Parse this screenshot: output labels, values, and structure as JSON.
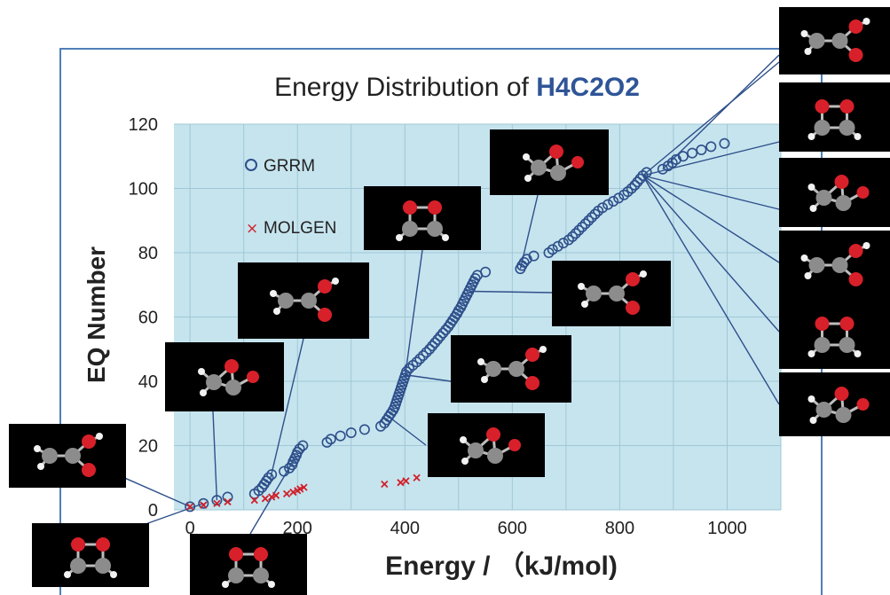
{
  "chart_data": {
    "type": "scatter",
    "title_prefix": "Energy Distribution of ",
    "title_formula": "H4C2O2",
    "xlabel": "Energy / （kJ/mol)",
    "ylabel": "EQ Number",
    "xlim": [
      -30,
      1100
    ],
    "ylim": [
      0,
      120
    ],
    "x_ticks": [
      0,
      200,
      400,
      600,
      800,
      1000
    ],
    "y_ticks": [
      0,
      20,
      40,
      60,
      80,
      100,
      120
    ],
    "grid": true,
    "legend_placement": "top-left",
    "colors": {
      "plot_background": "#c6e4ee",
      "grid": "#9fc7d6",
      "frame": "#4f7fb8",
      "grrm": "#2e4f8a",
      "molgen": "#d0202a",
      "title_formula": "#2f5597",
      "leader_line": "#2e4f8a",
      "thumbnail": "#000000"
    },
    "series": [
      {
        "name": "GRRM",
        "marker": "circle",
        "points": [
          [
            0,
            1
          ],
          [
            25,
            2
          ],
          [
            50,
            3
          ],
          [
            70,
            4
          ],
          [
            120,
            5
          ],
          [
            128,
            6
          ],
          [
            134,
            7
          ],
          [
            138,
            8
          ],
          [
            142,
            9
          ],
          [
            146,
            10
          ],
          [
            152,
            11
          ],
          [
            175,
            12
          ],
          [
            185,
            13
          ],
          [
            190,
            14
          ],
          [
            192,
            15
          ],
          [
            195,
            16
          ],
          [
            198,
            17
          ],
          [
            200,
            18
          ],
          [
            204,
            19
          ],
          [
            210,
            20
          ],
          [
            255,
            21
          ],
          [
            262,
            22
          ],
          [
            280,
            23
          ],
          [
            300,
            24
          ],
          [
            325,
            25
          ],
          [
            355,
            26
          ],
          [
            362,
            27
          ],
          [
            366,
            28
          ],
          [
            370,
            29
          ],
          [
            374,
            30
          ],
          [
            378,
            31
          ],
          [
            381,
            32
          ],
          [
            383,
            33
          ],
          [
            385,
            34
          ],
          [
            387,
            35
          ],
          [
            389,
            36
          ],
          [
            391,
            37
          ],
          [
            393,
            38
          ],
          [
            395,
            39
          ],
          [
            397,
            40
          ],
          [
            399,
            41
          ],
          [
            401,
            42
          ],
          [
            403,
            43
          ],
          [
            408,
            44
          ],
          [
            415,
            45
          ],
          [
            422,
            46
          ],
          [
            428,
            47
          ],
          [
            434,
            48
          ],
          [
            440,
            49
          ],
          [
            446,
            50
          ],
          [
            451,
            51
          ],
          [
            456,
            52
          ],
          [
            461,
            53
          ],
          [
            466,
            54
          ],
          [
            471,
            55
          ],
          [
            476,
            56
          ],
          [
            481,
            57
          ],
          [
            485,
            58
          ],
          [
            489,
            59
          ],
          [
            493,
            60
          ],
          [
            497,
            61
          ],
          [
            500,
            62
          ],
          [
            504,
            63
          ],
          [
            507,
            64
          ],
          [
            510,
            65
          ],
          [
            513,
            66
          ],
          [
            516,
            67
          ],
          [
            519,
            68
          ],
          [
            522,
            69
          ],
          [
            525,
            70
          ],
          [
            528,
            71
          ],
          [
            531,
            72
          ],
          [
            535,
            73
          ],
          [
            550,
            74
          ],
          [
            615,
            75
          ],
          [
            618,
            76
          ],
          [
            622,
            77
          ],
          [
            627,
            78
          ],
          [
            640,
            79
          ],
          [
            668,
            80
          ],
          [
            675,
            81
          ],
          [
            685,
            82
          ],
          [
            695,
            83
          ],
          [
            705,
            84
          ],
          [
            712,
            85
          ],
          [
            718,
            86
          ],
          [
            724,
            87
          ],
          [
            730,
            88
          ],
          [
            736,
            89
          ],
          [
            742,
            90
          ],
          [
            748,
            91
          ],
          [
            754,
            92
          ],
          [
            760,
            93
          ],
          [
            768,
            94
          ],
          [
            778,
            95
          ],
          [
            788,
            96
          ],
          [
            798,
            97
          ],
          [
            808,
            98
          ],
          [
            815,
            99
          ],
          [
            822,
            100
          ],
          [
            828,
            101
          ],
          [
            833,
            102
          ],
          [
            838,
            103
          ],
          [
            843,
            104
          ],
          [
            850,
            105
          ],
          [
            880,
            106
          ],
          [
            890,
            107
          ],
          [
            898,
            108
          ],
          [
            905,
            109
          ],
          [
            918,
            110
          ],
          [
            935,
            111
          ],
          [
            952,
            112
          ],
          [
            970,
            113
          ],
          [
            995,
            114
          ]
        ]
      },
      {
        "name": "MOLGEN",
        "marker": "cross",
        "points": [
          [
            0,
            1
          ],
          [
            25,
            1.5
          ],
          [
            50,
            2
          ],
          [
            70,
            2.5
          ],
          [
            120,
            3
          ],
          [
            140,
            3.5
          ],
          [
            152,
            4
          ],
          [
            160,
            4.5
          ],
          [
            180,
            5
          ],
          [
            192,
            5.5
          ],
          [
            200,
            6
          ],
          [
            205,
            6.5
          ],
          [
            212,
            7
          ],
          [
            362,
            8
          ],
          [
            392,
            8.5
          ],
          [
            402,
            9
          ],
          [
            422,
            10
          ]
        ]
      }
    ],
    "thumbnails": [
      {
        "structure": "acetic-acid"
      },
      {
        "structure": "formic-acid-like"
      },
      {
        "structure": "methyl-formate"
      },
      {
        "structure": "dioxetane-ring"
      },
      {
        "structure": "dioxetane-vertical"
      },
      {
        "structure": "epoxy-alcohol"
      },
      {
        "structure": "vinyl-peroxide"
      },
      {
        "structure": "epoxide-oh-a"
      },
      {
        "structure": "epoxide-oh-b"
      },
      {
        "structure": "bicyclic-1"
      },
      {
        "structure": "bicyclic-2"
      },
      {
        "structure": "bicyclic-3"
      },
      {
        "structure": "bicyclic-4"
      },
      {
        "structure": "bicyclic-5"
      },
      {
        "structure": "bicyclic-6"
      },
      {
        "structure": "ring-dioxiranyl"
      },
      {
        "structure": "acetaldehyde-oxide"
      }
    ]
  }
}
